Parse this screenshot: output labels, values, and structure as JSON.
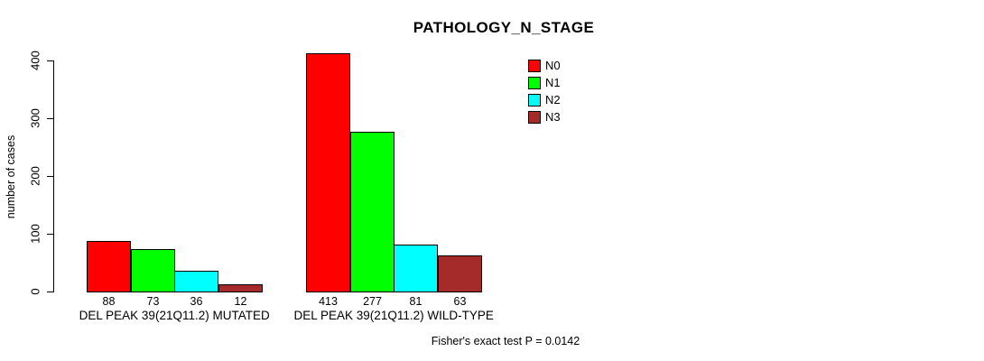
{
  "title": "PATHOLOGY_N_STAGE",
  "footer": "Fisher's exact test P = 0.0142",
  "colors": {
    "background": "#ffffff",
    "axis": "#000000",
    "text": "#000000"
  },
  "chart_data": {
    "type": "bar",
    "title": "PATHOLOGY_N_STAGE",
    "xlabel": "",
    "ylabel": "number of cases",
    "ylim": [
      0,
      400
    ],
    "yticks": [
      "0",
      "100",
      "200",
      "300",
      "400"
    ],
    "grid": false,
    "legend_position": "top-right",
    "categories": [
      "DEL PEAK 39(21Q11.2) MUTATED",
      "DEL PEAK 39(21Q11.2) WILD-TYPE"
    ],
    "series": [
      {
        "name": "N0",
        "color": "#ff0000",
        "values": [
          88,
          413
        ]
      },
      {
        "name": "N1",
        "color": "#00ff00",
        "values": [
          73,
          277
        ]
      },
      {
        "name": "N2",
        "color": "#00ffff",
        "values": [
          36,
          81
        ]
      },
      {
        "name": "N3",
        "color": "#a52a2a",
        "values": [
          12,
          63
        ]
      }
    ],
    "groups": [
      {
        "label": "DEL PEAK 39(21Q11.2) MUTATED",
        "values": [
          "88",
          "73",
          "36",
          "12"
        ]
      },
      {
        "label": "DEL PEAK 39(21Q11.2) WILD-TYPE",
        "values": [
          "413",
          "277",
          "81",
          "63"
        ]
      }
    ],
    "annotation": "Fisher's exact test P = 0.0142"
  }
}
